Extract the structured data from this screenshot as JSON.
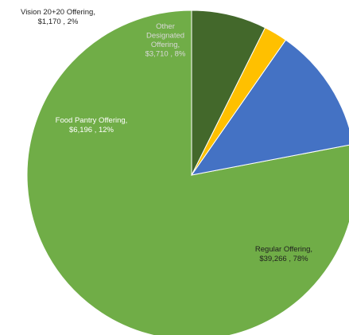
{
  "chart_data": {
    "type": "pie",
    "title": "",
    "slices": [
      {
        "name": "Regular Offering",
        "value": 39266,
        "value_label": "$39,266",
        "percent_label": "78%",
        "color": "#70ad47",
        "label_color": "#1f1f1f"
      },
      {
        "name": "Food Pantry Offering",
        "value": 6196,
        "value_label": "$6,196",
        "percent_label": "12%",
        "color": "#4472c4",
        "label_color": "#ffffff"
      },
      {
        "name": "Vision 20+20 Offering",
        "value": 1170,
        "value_label": "$1,170",
        "percent_label": "2%",
        "color": "#ffc000",
        "label_color": "#1f1f1f"
      },
      {
        "name": "Other Designated Offering",
        "value": 3710,
        "value_label": "$3,710",
        "percent_label": "8%",
        "color": "#43682b",
        "label_color": "#d9d9d9"
      }
    ],
    "labels": [
      {
        "lines": [
          "Regular Offering,",
          "$39,266 , 78%"
        ]
      },
      {
        "lines": [
          "Food Pantry Offering,",
          "$6,196 , 12%"
        ]
      },
      {
        "lines": [
          "Vision 20+20 Offering,",
          "$1,170 , 2%"
        ]
      },
      {
        "lines": [
          "Other",
          "Designated",
          "Offering,",
          "$3,710 , 8%"
        ]
      }
    ],
    "start_angle": "12 o'clock",
    "direction": "counter-clockwise",
    "legend": "none",
    "data_labels": "category, value, percent"
  }
}
